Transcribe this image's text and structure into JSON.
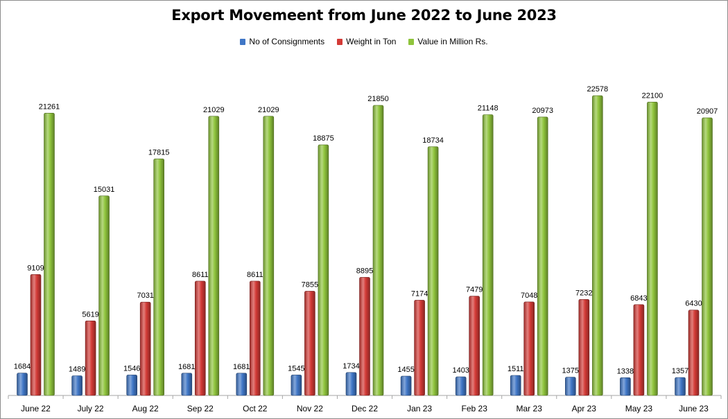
{
  "chart_data": {
    "type": "bar",
    "title": "Export Movemeent from June 2022 to June 2023",
    "xlabel": "",
    "ylabel": "",
    "ylim": [
      0,
      23000
    ],
    "grid": false,
    "legend_position": "top-center",
    "categories": [
      "June 22",
      "July 22",
      "Aug 22",
      "Sep 22",
      "Oct 22",
      "Nov 22",
      "Dec 22",
      "Jan 23",
      "Feb 23",
      "Mar 23",
      "Apr 23",
      "May 23",
      "June 23"
    ],
    "series": [
      {
        "name": "No of Consignments",
        "color": "#3f76c6",
        "values": [
          1684,
          1489,
          1546,
          1681,
          1681,
          1545,
          1734,
          1455,
          1403,
          1511,
          1375,
          1338,
          1357
        ]
      },
      {
        "name": "Weight in Ton",
        "color": "#d33a36",
        "values": [
          9109,
          5619,
          7031,
          8611,
          8611,
          7855,
          8895,
          7174,
          7479,
          7048,
          7232,
          6843,
          6430
        ]
      },
      {
        "name": "Value in Million Rs.",
        "color": "#8fc43c",
        "values": [
          21261,
          15031,
          17815,
          21029,
          21029,
          18875,
          21850,
          18734,
          21148,
          20973,
          22578,
          22100,
          20907
        ]
      }
    ]
  }
}
